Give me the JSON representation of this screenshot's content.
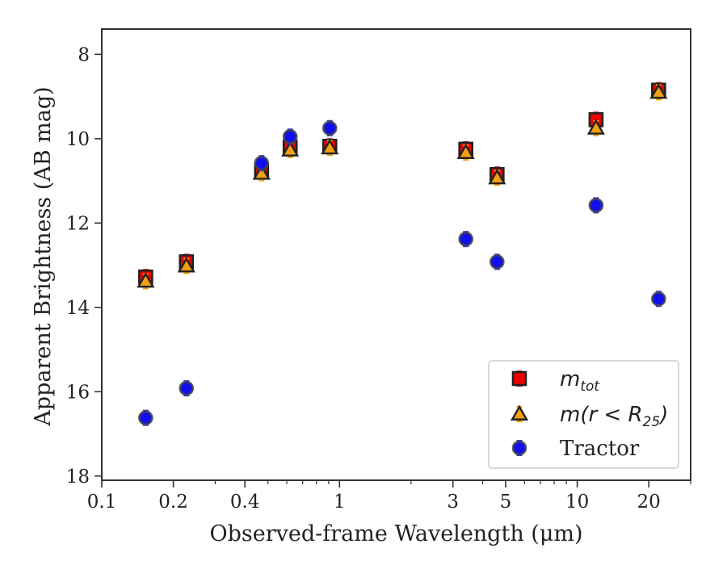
{
  "chart_data": {
    "type": "scatter",
    "xlabel": "Observed-frame Wavelength (μm)",
    "ylabel": "Apparent Brightness (AB mag)",
    "xscale": "log",
    "xlim": [
      0.1,
      30
    ],
    "ylim": [
      18.1,
      7.4
    ],
    "y_inverted": true,
    "x_ticks": [
      0.1,
      0.2,
      0.4,
      1,
      3,
      5,
      10,
      20
    ],
    "x_tick_labels": [
      "0.1",
      "0.2",
      "0.4",
      "1",
      "3",
      "5",
      "10",
      "20"
    ],
    "y_ticks": [
      8,
      10,
      12,
      14,
      16,
      18
    ],
    "y_tick_labels": [
      "8",
      "10",
      "12",
      "14",
      "16",
      "18"
    ],
    "grid": false,
    "legend_position": "lower-right",
    "series": [
      {
        "name": "m_tot",
        "legend_main": "m",
        "legend_sub": "tot",
        "marker": "square",
        "color": "#ee0000",
        "errcolor": "#dd0000",
        "points": [
          {
            "x": 0.153,
            "y": 13.28
          },
          {
            "x": 0.227,
            "y": 12.92
          },
          {
            "x": 0.47,
            "y": 10.75
          },
          {
            "x": 0.62,
            "y": 10.2
          },
          {
            "x": 0.91,
            "y": 10.18
          },
          {
            "x": 3.4,
            "y": 10.25
          },
          {
            "x": 4.6,
            "y": 10.85
          },
          {
            "x": 12.0,
            "y": 9.55
          },
          {
            "x": 22.0,
            "y": 8.85
          }
        ]
      },
      {
        "name": "m(r < R25)",
        "legend_main": "m(r < R",
        "legend_sub": "25",
        "legend_tail": ")",
        "marker": "triangle",
        "color": "#f0a010",
        "errcolor": "#f0a010",
        "points": [
          {
            "x": 0.153,
            "y": 13.38
          },
          {
            "x": 0.227,
            "y": 13.02
          },
          {
            "x": 0.47,
            "y": 10.82
          },
          {
            "x": 0.62,
            "y": 10.27
          },
          {
            "x": 0.91,
            "y": 10.22
          },
          {
            "x": 3.4,
            "y": 10.33
          },
          {
            "x": 4.6,
            "y": 10.93
          },
          {
            "x": 12.0,
            "y": 9.75
          },
          {
            "x": 22.0,
            "y": 8.9
          }
        ]
      },
      {
        "name": "Tractor",
        "legend_main": "Tractor",
        "marker": "circle",
        "color": "#1010ee",
        "errcolor": "#3030ee",
        "points": [
          {
            "x": 0.153,
            "y": 16.62
          },
          {
            "x": 0.227,
            "y": 15.92
          },
          {
            "x": 0.47,
            "y": 10.58
          },
          {
            "x": 0.62,
            "y": 9.95
          },
          {
            "x": 0.91,
            "y": 9.75
          },
          {
            "x": 3.4,
            "y": 12.38
          },
          {
            "x": 4.6,
            "y": 12.92
          },
          {
            "x": 12.0,
            "y": 11.58
          },
          {
            "x": 22.0,
            "y": 13.8
          }
        ]
      }
    ]
  }
}
